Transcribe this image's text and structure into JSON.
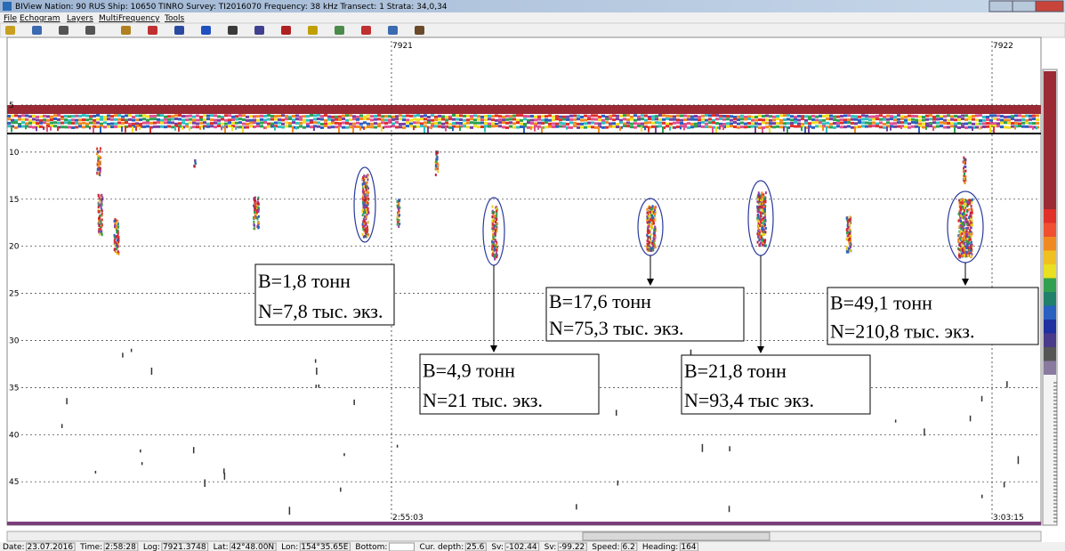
{
  "window": {
    "title": "BIView Nation: 90 RUS  Ship: 10650 TINRO  Survey: TI2016070  Frequency: 38 kHz  Transect: 1  Strata: 34,0,34"
  },
  "menu": [
    "File",
    "Echogram",
    "Layers",
    "MultiFrequency",
    "Tools"
  ],
  "echogram": {
    "depth_labels": [
      "5",
      "10",
      "15",
      "20",
      "25",
      "30",
      "35",
      "40",
      "45"
    ],
    "markers": [
      {
        "label": "7921",
        "time": "2:55:03"
      },
      {
        "label": "7922",
        "time": "3:03:15"
      }
    ],
    "annotations": [
      {
        "line1": "B=1,8 тонн",
        "line2": "N=7,8 тыс. экз."
      },
      {
        "line1": "B=4,9 тонн",
        "line2": "N=21 тыс. экз."
      },
      {
        "line1": "B=17,6 тонн",
        "line2": "N=75,3 тыс. экз."
      },
      {
        "line1": "B=21,8 тонн",
        "line2": "N=93,4 тыс экз."
      },
      {
        "line1": "B=49,1 тонн",
        "line2": "N=210,8 тыс. экз."
      }
    ]
  },
  "status_bar": [
    {
      "label": "Date:",
      "value": "23.07.2016"
    },
    {
      "label": "Time:",
      "value": "2:58:28"
    },
    {
      "label": "Log:",
      "value": "7921.3748"
    },
    {
      "label": "Lat:",
      "value": "42°48.00N"
    },
    {
      "label": "Lon:",
      "value": "154°35.65E"
    },
    {
      "label": "Bottom:"
    },
    {
      "label": "Cur. depth:",
      "value": "25.6"
    },
    {
      "label": "Sv:",
      "value": "-102.44"
    },
    {
      "label": "Sv:",
      "value": "-99.22"
    },
    {
      "label": "Speed:",
      "value": "6.2"
    },
    {
      "label": "Heading:",
      "value": "164"
    }
  ]
}
